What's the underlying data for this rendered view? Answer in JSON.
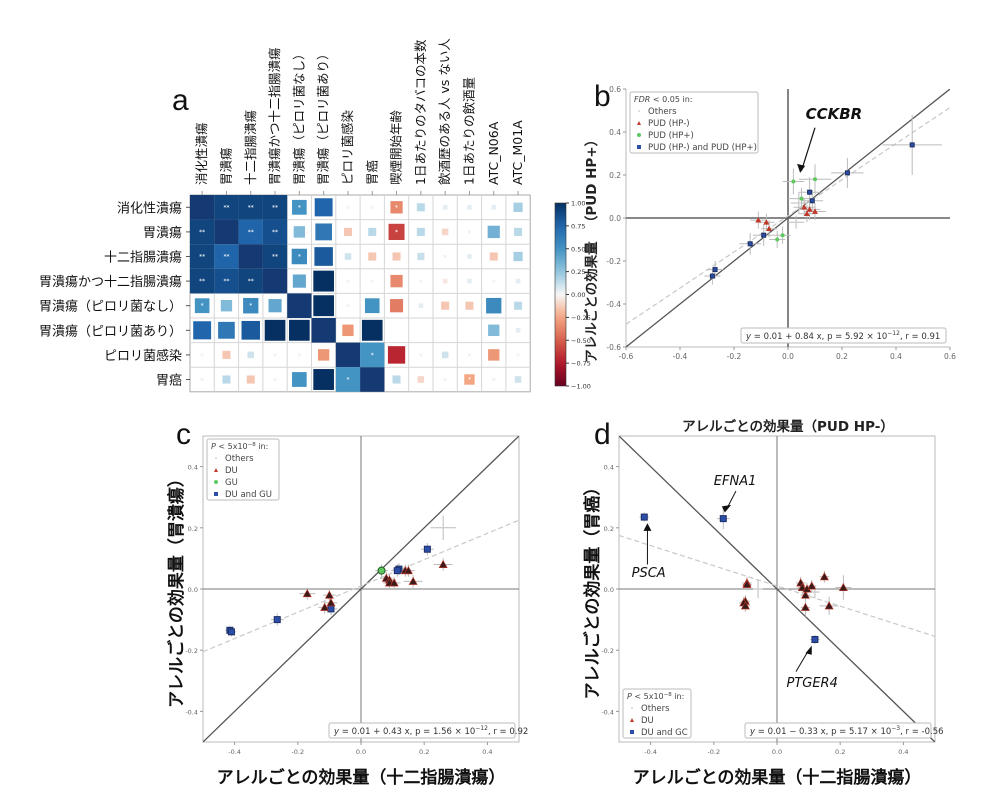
{
  "panels": {
    "a": "a",
    "b": "b",
    "c": "c",
    "d": "d"
  },
  "chart_data": [
    {
      "id": "a",
      "type": "heatmap",
      "title": "",
      "row_labels": [
        "消化性潰瘍",
        "胃潰瘍",
        "十二指腸潰瘍",
        "胃潰瘍かつ十二指腸潰瘍",
        "胃潰瘍（ピロリ菌なし）",
        "胃潰瘍（ピロリ菌あり）",
        "ピロリ菌感染",
        "胃癌"
      ],
      "col_labels": [
        "消化性潰瘍",
        "胃潰瘍",
        "十二指腸潰瘍",
        "胃潰瘍かつ十二指腸潰瘍",
        "胃潰瘍（ピロリ菌なし）",
        "胃潰瘍（ピロリ菌あり）",
        "ピロリ菌感染",
        "胃癌",
        "喫煙開始年齢",
        "1日あたりのタバコの本数",
        "飲酒歴のある人 vs ない人",
        "1日あたりの飲酒量",
        "ATC_N06A",
        "ATC_M01A"
      ],
      "values": [
        [
          1.0,
          0.95,
          0.95,
          0.95,
          0.5,
          0.75,
          0.02,
          0.02,
          -0.35,
          0.15,
          0.05,
          0.05,
          0.05,
          0.2
        ],
        [
          0.95,
          1.0,
          0.8,
          0.9,
          0.3,
          0.65,
          -0.15,
          0.15,
          -0.6,
          0.15,
          -0.1,
          0.02,
          0.35,
          0.15
        ],
        [
          0.95,
          0.8,
          1.0,
          0.95,
          0.55,
          0.8,
          0.1,
          -0.15,
          -0.15,
          0.12,
          0.02,
          0.05,
          -0.15,
          0.2
        ],
        [
          0.95,
          0.9,
          0.95,
          1.0,
          0.4,
          1.0,
          0.02,
          0.02,
          -0.35,
          0.02,
          -0.05,
          0.05,
          0.02,
          0.05
        ],
        [
          0.5,
          0.3,
          0.55,
          0.4,
          1.0,
          1.0,
          0.02,
          0.5,
          -0.4,
          0.05,
          -0.15,
          -0.15,
          0.55,
          0.15
        ],
        [
          0.75,
          0.65,
          0.8,
          1.0,
          1.0,
          1.0,
          -0.3,
          1.0,
          0.0,
          0.0,
          0.0,
          0.0,
          0.3,
          0.05
        ],
        [
          0.02,
          -0.15,
          0.1,
          0.02,
          0.02,
          -0.3,
          1.0,
          0.5,
          -0.7,
          0.02,
          0.1,
          0.02,
          -0.3,
          0.02
        ],
        [
          0.02,
          0.15,
          -0.15,
          0.02,
          0.5,
          1.0,
          0.5,
          1.0,
          0.15,
          -0.1,
          0.02,
          -0.25,
          0.02,
          0.1
        ]
      ],
      "significance": [
        [
          "",
          "**",
          "**",
          "**",
          "*",
          "",
          "",
          "",
          "*",
          "",
          "",
          "",
          "",
          ""
        ],
        [
          "**",
          "",
          "**",
          "**",
          "",
          "",
          "",
          "",
          "*",
          "",
          "",
          "",
          "",
          ""
        ],
        [
          "**",
          "**",
          "",
          "**",
          "*",
          "",
          "",
          "",
          "",
          "",
          "",
          "",
          "",
          ""
        ],
        [
          "**",
          "**",
          "**",
          "",
          "",
          "",
          "",
          "",
          "",
          "",
          "",
          "",
          "",
          ""
        ],
        [
          "*",
          "",
          "*",
          "",
          "",
          "",
          "",
          "",
          "",
          "",
          "",
          "",
          "",
          ""
        ],
        [
          "",
          "",
          "",
          "",
          "",
          "",
          "",
          "",
          "",
          "",
          "",
          "",
          "",
          ""
        ],
        [
          "",
          "",
          "",
          "",
          "",
          "",
          "",
          "*",
          "",
          "",
          "",
          "",
          "",
          ""
        ],
        [
          "",
          "",
          "",
          "",
          "",
          "",
          "*",
          "",
          "",
          "",
          "",
          "*",
          "",
          ""
        ]
      ],
      "colorbar": {
        "ticks": [
          "1.00",
          "0.75",
          "0.50",
          "0.25",
          "0.00",
          "−0.25",
          "−0.50",
          "−0.75",
          "−1.00"
        ],
        "range": [
          -1,
          1
        ],
        "cmap": "RdBu"
      }
    },
    {
      "id": "b",
      "type": "scatter",
      "xlabel": "アレルごとの効果量（PUD HP-）",
      "ylabel_main": "アレルごとの効果量",
      "ylabel_paren": "（PUD HP+）",
      "xlim": [
        -0.6,
        0.6
      ],
      "ylim": [
        -0.6,
        0.6
      ],
      "xticks": [
        "-0.6",
        "-0.4",
        "-0.2",
        "0.0",
        "0.2",
        "0.4",
        "0.6"
      ],
      "yticks": [
        "-0.6",
        "-0.4",
        "-0.2",
        "0.0",
        "0.2",
        "0.4",
        "0.6"
      ],
      "legend": {
        "title": "FDR < 0.05 in:",
        "title_italic": "FDR",
        "title_rest": " < 0.05 in:",
        "location": "top-left",
        "entries": [
          {
            "label": "Others",
            "color": "#bbbbbb",
            "marker": "dot"
          },
          {
            "label": "PUD (HP-)",
            "color": "#c0392b",
            "marker": "triangle"
          },
          {
            "label": "PUD (HP+)",
            "color": "#5fc85f",
            "marker": "circle"
          },
          {
            "label": "PUD (HP-) and PUD (HP+)",
            "color": "#2c4ea8",
            "marker": "square"
          }
        ]
      },
      "fit": {
        "intercept": 0.01,
        "slope": 0.84
      },
      "equation": {
        "lhs": "y = ",
        "body": "0.01 + 0.84 x, p = 5.92 × 10",
        "exp": "−12",
        "tail": ", r = 0.91"
      },
      "annotations": [
        {
          "text": "CCKBR",
          "x": 0.02,
          "y": 0.17
        }
      ],
      "points": [
        {
          "x": 0.46,
          "y": 0.34,
          "ex": 0.11,
          "ey": 0.14,
          "g": "both"
        },
        {
          "x": 0.22,
          "y": 0.21,
          "ex": 0.06,
          "ey": 0.07,
          "g": "both"
        },
        {
          "x": 0.08,
          "y": 0.12,
          "ex": 0.04,
          "ey": 0.07,
          "g": "both"
        },
        {
          "x": 0.09,
          "y": 0.08,
          "ex": 0.04,
          "ey": 0.05,
          "g": "both"
        },
        {
          "x": -0.09,
          "y": -0.08,
          "ex": 0.04,
          "ey": 0.05,
          "g": "both"
        },
        {
          "x": -0.14,
          "y": -0.12,
          "ex": 0.04,
          "ey": 0.05,
          "g": "both"
        },
        {
          "x": -0.27,
          "y": -0.24,
          "ex": 0.03,
          "ey": 0.04,
          "g": "both"
        },
        {
          "x": -0.28,
          "y": -0.27,
          "ex": 0.03,
          "ey": 0.04,
          "g": "both"
        },
        {
          "x": 0.02,
          "y": 0.17,
          "ex": 0.04,
          "ey": 0.06,
          "g": "hpp"
        },
        {
          "x": 0.1,
          "y": 0.18,
          "ex": 0.06,
          "ey": 0.07,
          "g": "hpp"
        },
        {
          "x": 0.05,
          "y": 0.09,
          "ex": 0.05,
          "ey": 0.05,
          "g": "hpp"
        },
        {
          "x": -0.04,
          "y": -0.1,
          "ex": 0.03,
          "ey": 0.04,
          "g": "hpp"
        },
        {
          "x": -0.02,
          "y": -0.08,
          "ex": 0.03,
          "ey": 0.04,
          "g": "hpp"
        },
        {
          "x": 0.06,
          "y": 0.05,
          "ex": 0.04,
          "ey": 0.04,
          "g": "hpm"
        },
        {
          "x": 0.08,
          "y": 0.04,
          "ex": 0.04,
          "ey": 0.05,
          "g": "hpm"
        },
        {
          "x": 0.1,
          "y": 0.03,
          "ex": 0.04,
          "ey": 0.04,
          "g": "hpm"
        },
        {
          "x": 0.07,
          "y": 0.02,
          "ex": 0.03,
          "ey": 0.04,
          "g": "hpm"
        },
        {
          "x": -0.11,
          "y": -0.01,
          "ex": 0.03,
          "ey": 0.04,
          "g": "hpm"
        },
        {
          "x": -0.08,
          "y": -0.02,
          "ex": 0.03,
          "ey": 0.04,
          "g": "hpm"
        },
        {
          "x": -0.07,
          "y": -0.05,
          "ex": 0.03,
          "ey": 0.04,
          "g": "hpm"
        },
        {
          "x": 0.03,
          "y": -0.02,
          "ex": 0.03,
          "ey": 0.03,
          "g": "other"
        },
        {
          "x": 0.04,
          "y": 0.07,
          "ex": 0.03,
          "ey": 0.05,
          "g": "other"
        }
      ]
    },
    {
      "id": "c",
      "type": "scatter",
      "xlabel": "アレルごとの効果量（十二指腸潰瘍）",
      "ylabel": "アレルごとの効果量（胃潰瘍）",
      "xlim": [
        -0.5,
        0.5
      ],
      "ylim": [
        -0.5,
        0.5
      ],
      "xticks": [
        "-0.4",
        "-0.2",
        "0.0",
        "0.2",
        "0.4"
      ],
      "yticks": [
        "-0.4",
        "-0.2",
        "0.0",
        "0.2",
        "0.4"
      ],
      "legend": {
        "title_italic": "P",
        "title_rest": " < 5x10",
        "title_exp": "−8",
        "title_tail": " in:",
        "location": "top-left",
        "entries": [
          {
            "label": "Others",
            "color": "#bbbbbb",
            "marker": "dot"
          },
          {
            "label": "DU",
            "color": "#c0392b",
            "marker": "triangle"
          },
          {
            "label": "GU",
            "color": "#5fc85f",
            "marker": "circle"
          },
          {
            "label": "DU and GU",
            "color": "#2c4ea8",
            "marker": "square"
          }
        ]
      },
      "fit": {
        "intercept": 0.01,
        "slope": 0.43
      },
      "equation": {
        "lhs": "y = ",
        "body": "0.01 + 0.43 x, p = 1.56 × 10",
        "exp": "−12",
        "tail": ", r = 0.92"
      },
      "points": [
        {
          "x": 0.26,
          "y": 0.2,
          "ex": 0.04,
          "ey": 0.04,
          "g": "other"
        },
        {
          "x": 0.21,
          "y": 0.13,
          "ex": 0.02,
          "ey": 0.02,
          "g": "both"
        },
        {
          "x": 0.12,
          "y": 0.065,
          "ex": 0.02,
          "ey": 0.02,
          "g": "both"
        },
        {
          "x": 0.115,
          "y": 0.06,
          "ex": 0.02,
          "ey": 0.02,
          "g": "both"
        },
        {
          "x": -0.265,
          "y": -0.1,
          "ex": 0.02,
          "ey": 0.02,
          "g": "both"
        },
        {
          "x": -0.415,
          "y": -0.135,
          "ex": 0.015,
          "ey": 0.015,
          "g": "both"
        },
        {
          "x": -0.41,
          "y": -0.14,
          "ex": 0.015,
          "ey": 0.015,
          "g": "both"
        },
        {
          "x": -0.095,
          "y": -0.065,
          "ex": 0.02,
          "ey": 0.02,
          "g": "both"
        },
        {
          "x": 0.065,
          "y": 0.06,
          "ex": 0.02,
          "ey": 0.02,
          "g": "gu"
        },
        {
          "x": 0.26,
          "y": 0.08,
          "ex": 0.03,
          "ey": 0.02,
          "g": "du"
        },
        {
          "x": 0.14,
          "y": 0.06,
          "ex": 0.02,
          "ey": 0.02,
          "g": "du"
        },
        {
          "x": 0.15,
          "y": 0.06,
          "ex": 0.02,
          "ey": 0.02,
          "g": "du"
        },
        {
          "x": 0.165,
          "y": 0.025,
          "ex": 0.03,
          "ey": 0.02,
          "g": "du"
        },
        {
          "x": 0.08,
          "y": 0.035,
          "ex": 0.02,
          "ey": 0.02,
          "g": "du"
        },
        {
          "x": 0.09,
          "y": 0.03,
          "ex": 0.02,
          "ey": 0.02,
          "g": "du"
        },
        {
          "x": 0.09,
          "y": 0.02,
          "ex": 0.02,
          "ey": 0.02,
          "g": "du"
        },
        {
          "x": 0.105,
          "y": 0.02,
          "ex": 0.02,
          "ey": 0.02,
          "g": "du"
        },
        {
          "x": -0.17,
          "y": -0.015,
          "ex": 0.025,
          "ey": 0.02,
          "g": "du"
        },
        {
          "x": -0.1,
          "y": -0.02,
          "ex": 0.02,
          "ey": 0.02,
          "g": "du"
        },
        {
          "x": -0.095,
          "y": -0.045,
          "ex": 0.02,
          "ey": 0.02,
          "g": "du"
        },
        {
          "x": -0.115,
          "y": -0.06,
          "ex": 0.02,
          "ey": 0.02,
          "g": "du"
        }
      ]
    },
    {
      "id": "d",
      "type": "scatter",
      "xlabel": "アレルごとの効果量（十二指腸潰瘍）",
      "ylabel": "アレルごとの効果量（胃癌）",
      "xlim": [
        -0.5,
        0.5
      ],
      "ylim": [
        -0.5,
        0.5
      ],
      "xticks": [
        "-0.4",
        "-0.2",
        "0.0",
        "0.2",
        "0.4"
      ],
      "yticks": [
        "-0.4",
        "-0.2",
        "0.0",
        "0.2",
        "0.4"
      ],
      "legend": {
        "title_italic": "P",
        "title_rest": " < 5x10",
        "title_exp": "−8",
        "title_tail": " in:",
        "location": "bottom-left",
        "entries": [
          {
            "label": "Others",
            "color": "#bbbbbb",
            "marker": "dot"
          },
          {
            "label": "DU",
            "color": "#c0392b",
            "marker": "triangle"
          },
          {
            "label": "DU and GC",
            "color": "#2c4ea8",
            "marker": "square"
          }
        ]
      },
      "fit": {
        "intercept": 0.01,
        "slope": -0.33
      },
      "equation": {
        "lhs": "y = ",
        "body": "0.01 − 0.33 x, p = 5.17 × 10",
        "exp": "−3",
        "tail": ", r = -0.56"
      },
      "annotations": [
        {
          "text": "EFNA1",
          "x": -0.17,
          "y": 0.23
        },
        {
          "text": "PSCA",
          "x": -0.42,
          "y": 0.235
        },
        {
          "text": "PTGER4",
          "x": 0.12,
          "y": -0.165
        }
      ],
      "points": [
        {
          "x": -0.42,
          "y": 0.235,
          "ex": 0.015,
          "ey": 0.015,
          "g": "both"
        },
        {
          "x": -0.17,
          "y": 0.23,
          "ex": 0.02,
          "ey": 0.035,
          "g": "both"
        },
        {
          "x": 0.12,
          "y": -0.165,
          "ex": 0.015,
          "ey": 0.015,
          "g": "both"
        },
        {
          "x": -0.095,
          "y": 0.02,
          "ex": 0.015,
          "ey": 0.02,
          "g": "du"
        },
        {
          "x": -0.095,
          "y": 0.015,
          "ex": 0.015,
          "ey": 0.02,
          "g": "du"
        },
        {
          "x": -0.06,
          "y": 0.0,
          "ex": 0.015,
          "ey": 0.03,
          "g": "other"
        },
        {
          "x": -0.1,
          "y": -0.04,
          "ex": 0.015,
          "ey": 0.02,
          "g": "du"
        },
        {
          "x": -0.105,
          "y": -0.045,
          "ex": 0.015,
          "ey": 0.02,
          "g": "du"
        },
        {
          "x": -0.1,
          "y": -0.055,
          "ex": 0.015,
          "ey": 0.02,
          "g": "du"
        },
        {
          "x": 0.075,
          "y": 0.02,
          "ex": 0.015,
          "ey": 0.02,
          "g": "du"
        },
        {
          "x": 0.08,
          "y": 0.005,
          "ex": 0.015,
          "ey": 0.02,
          "g": "du"
        },
        {
          "x": 0.09,
          "y": -0.02,
          "ex": 0.015,
          "ey": 0.02,
          "g": "du"
        },
        {
          "x": 0.095,
          "y": 0.0,
          "ex": 0.015,
          "ey": 0.02,
          "g": "du"
        },
        {
          "x": 0.11,
          "y": 0.01,
          "ex": 0.015,
          "ey": 0.02,
          "g": "du"
        },
        {
          "x": 0.12,
          "y": -0.01,
          "ex": 0.015,
          "ey": 0.02,
          "g": "other"
        },
        {
          "x": 0.15,
          "y": 0.04,
          "ex": 0.015,
          "ey": 0.02,
          "g": "du"
        },
        {
          "x": 0.09,
          "y": -0.06,
          "ex": 0.015,
          "ey": 0.03,
          "g": "du"
        },
        {
          "x": 0.165,
          "y": -0.055,
          "ex": 0.03,
          "ey": 0.03,
          "g": "du"
        },
        {
          "x": 0.21,
          "y": 0.005,
          "ex": 0.025,
          "ey": 0.04,
          "g": "du"
        }
      ]
    }
  ]
}
